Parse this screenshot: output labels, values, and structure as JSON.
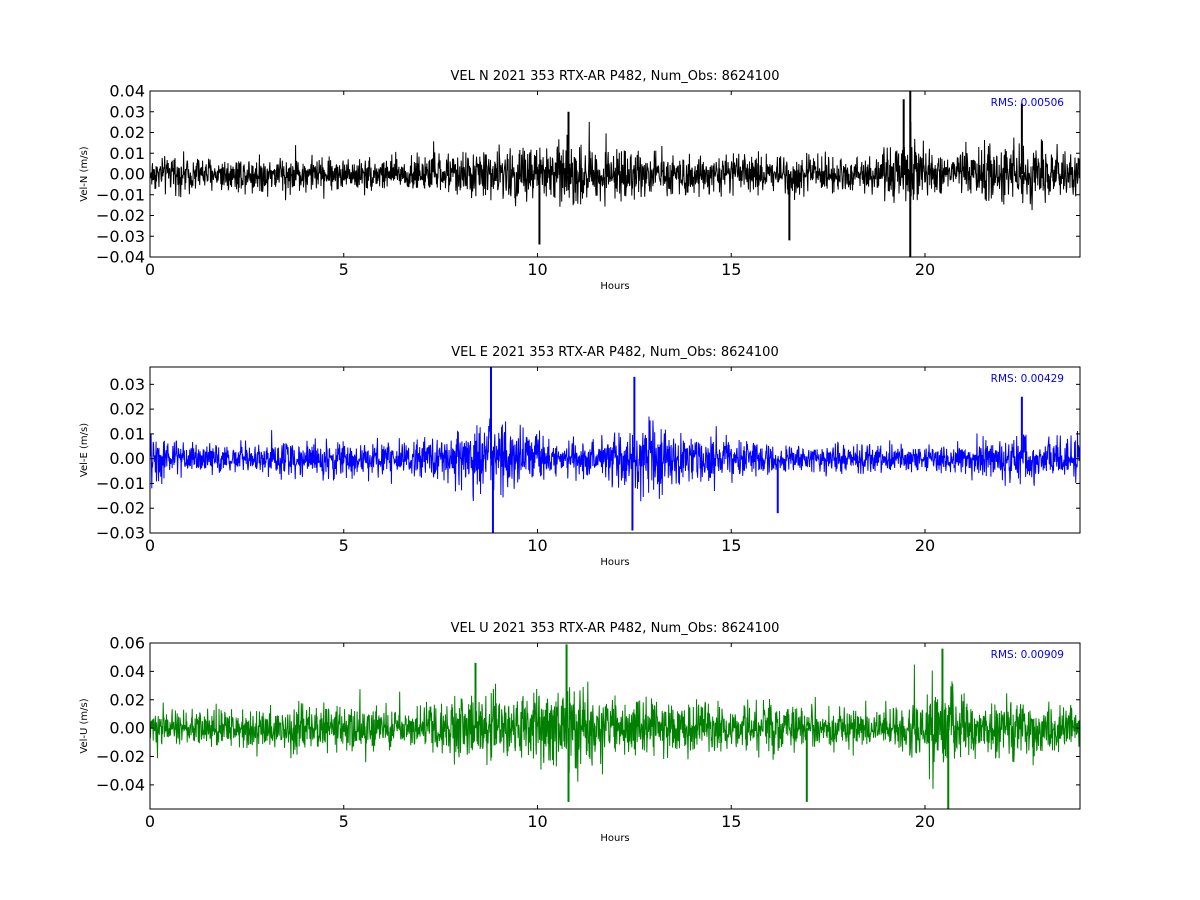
{
  "chart_data": [
    {
      "type": "line",
      "title": "VEL N 2021 353 RTX-AR  P482, Num_Obs: 8624100",
      "xlabel": "Hours",
      "ylabel": "Vel-N (m/s)",
      "annotation": "RMS:  0.00506",
      "annotation_color": "#0000ff",
      "line_color": "#000000",
      "xlim": [
        0,
        24
      ],
      "ylim": [
        -0.04,
        0.04
      ],
      "xticks": [
        0,
        5,
        10,
        15,
        20
      ],
      "xtick_labels": [
        "0",
        "5",
        "10",
        "15",
        "20"
      ],
      "yticks": [
        -0.04,
        -0.03,
        -0.02,
        -0.01,
        0.0,
        0.01,
        0.02,
        0.03,
        0.04
      ],
      "ytick_labels": [
        "−0.04",
        "−0.03",
        "−0.02",
        "−0.01",
        "0.00",
        "0.01",
        "0.02",
        "0.03",
        "0.04"
      ],
      "envelope": {
        "hours": [
          0,
          1,
          2,
          3,
          4,
          5,
          6,
          7,
          8,
          8.5,
          9,
          9.5,
          10,
          10.5,
          11,
          11.5,
          12,
          12.5,
          13,
          14,
          15,
          16,
          16.5,
          17,
          18,
          19,
          19.5,
          19.7,
          20,
          20.5,
          21,
          21.5,
          22,
          22.5,
          23,
          24
        ],
        "amplitude": [
          0.012,
          0.012,
          0.012,
          0.013,
          0.012,
          0.011,
          0.012,
          0.013,
          0.014,
          0.016,
          0.018,
          0.02,
          0.022,
          0.021,
          0.023,
          0.019,
          0.016,
          0.016,
          0.014,
          0.014,
          0.012,
          0.014,
          0.017,
          0.012,
          0.012,
          0.015,
          0.022,
          0.035,
          0.016,
          0.012,
          0.017,
          0.019,
          0.021,
          0.02,
          0.016,
          0.015
        ]
      },
      "peaks": [
        [
          19.62,
          0.041
        ],
        [
          19.62,
          -0.04
        ],
        [
          19.45,
          0.036
        ],
        [
          10.05,
          -0.034
        ],
        [
          22.5,
          0.034
        ],
        [
          10.8,
          0.03
        ],
        [
          16.5,
          -0.032
        ]
      ]
    },
    {
      "type": "line",
      "title": "VEL E 2021 353 RTX-AR  P482, Num_Obs: 8624100",
      "xlabel": "Hours",
      "ylabel": "Vel-E (m/s)",
      "annotation": "RMS:  0.00429",
      "annotation_color": "#0000ff",
      "line_color": "#0000ff",
      "xlim": [
        0,
        24
      ],
      "ylim": [
        -0.03,
        0.037
      ],
      "xticks": [
        0,
        5,
        10,
        15,
        20
      ],
      "xtick_labels": [
        "0",
        "5",
        "10",
        "15",
        "20"
      ],
      "yticks": [
        -0.03,
        -0.02,
        -0.01,
        0.0,
        0.01,
        0.02,
        0.03
      ],
      "ytick_labels": [
        "−0.03",
        "−0.02",
        "−0.01",
        "0.00",
        "0.01",
        "0.02",
        "0.03"
      ],
      "envelope": {
        "hours": [
          0,
          0.5,
          1,
          2,
          3,
          4,
          5,
          6,
          7,
          7.5,
          8,
          8.5,
          9,
          9.5,
          10,
          10.5,
          11,
          11.5,
          12,
          12.5,
          13,
          13.5,
          14,
          15,
          16,
          17,
          18,
          19,
          20,
          20.5,
          21,
          21.5,
          22,
          22.5,
          23,
          24
        ],
        "amplitude": [
          0.014,
          0.012,
          0.009,
          0.008,
          0.009,
          0.01,
          0.01,
          0.01,
          0.01,
          0.012,
          0.016,
          0.022,
          0.024,
          0.02,
          0.014,
          0.011,
          0.011,
          0.012,
          0.014,
          0.019,
          0.021,
          0.018,
          0.015,
          0.011,
          0.009,
          0.008,
          0.008,
          0.008,
          0.008,
          0.009,
          0.01,
          0.012,
          0.014,
          0.015,
          0.013,
          0.012
        ]
      },
      "peaks": [
        [
          8.8,
          0.037
        ],
        [
          8.85,
          -0.03
        ],
        [
          12.5,
          0.033
        ],
        [
          12.45,
          -0.029
        ],
        [
          22.5,
          0.025
        ],
        [
          16.2,
          -0.022
        ]
      ]
    },
    {
      "type": "line",
      "title": "VEL U 2021 353 RTX-AR  P482, Num_Obs: 8624100",
      "xlabel": "Hours",
      "ylabel": "Vel-U (m/s)",
      "annotation": "RMS:  0.00909",
      "annotation_color": "#0000ff",
      "line_color": "#008000",
      "xlim": [
        0,
        24
      ],
      "ylim": [
        -0.057,
        0.06
      ],
      "xticks": [
        0,
        5,
        10,
        15,
        20
      ],
      "xtick_labels": [
        "0",
        "5",
        "10",
        "15",
        "20"
      ],
      "yticks": [
        -0.04,
        -0.02,
        0.0,
        0.02,
        0.04,
        0.06
      ],
      "ytick_labels": [
        "−0.04",
        "−0.02",
        "0.00",
        "0.02",
        "0.04",
        "0.06"
      ],
      "envelope": {
        "hours": [
          0,
          1,
          2,
          3,
          3.5,
          4,
          5,
          6,
          7,
          7.5,
          8,
          8.5,
          9,
          9.5,
          10,
          10.5,
          11,
          11.5,
          12,
          13,
          14,
          15,
          16,
          17,
          18,
          19,
          19.5,
          20,
          20.5,
          21,
          21.5,
          22,
          22.5,
          23,
          24
        ],
        "amplitude": [
          0.016,
          0.017,
          0.018,
          0.02,
          0.024,
          0.025,
          0.022,
          0.02,
          0.021,
          0.026,
          0.032,
          0.035,
          0.033,
          0.03,
          0.032,
          0.042,
          0.045,
          0.035,
          0.03,
          0.028,
          0.026,
          0.022,
          0.024,
          0.02,
          0.021,
          0.02,
          0.03,
          0.038,
          0.042,
          0.036,
          0.026,
          0.027,
          0.03,
          0.028,
          0.02
        ]
      },
      "peaks": [
        [
          10.75,
          0.059
        ],
        [
          10.8,
          -0.052
        ],
        [
          20.45,
          0.056
        ],
        [
          20.6,
          -0.057
        ],
        [
          16.95,
          -0.052
        ],
        [
          8.4,
          0.046
        ]
      ]
    }
  ]
}
